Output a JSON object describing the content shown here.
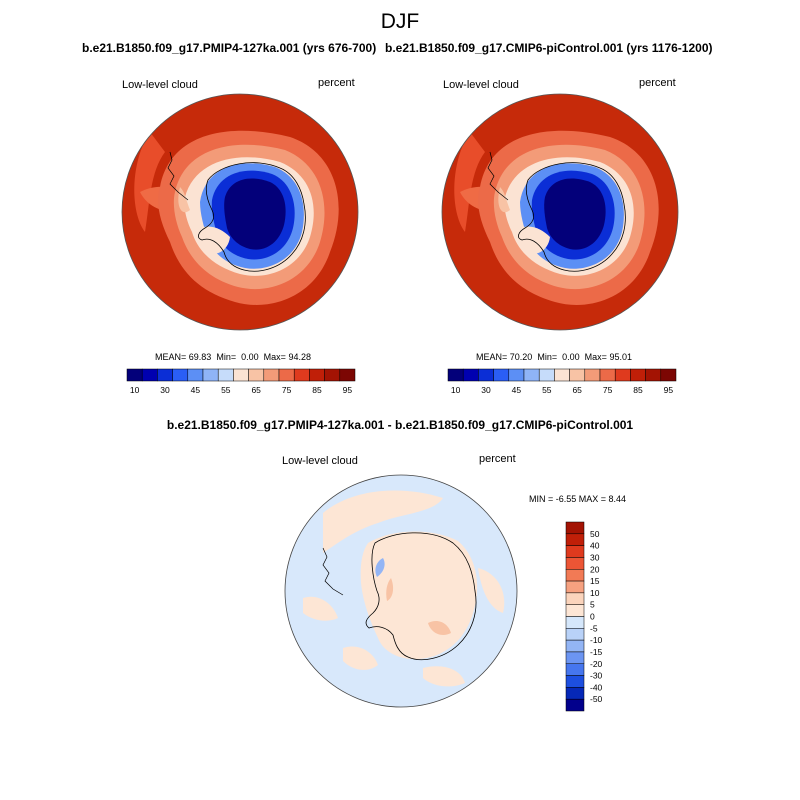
{
  "page": {
    "title": "DJF",
    "diff_title": "b.e21.B1850.f09_g17.PMIP4-127ka.001 - b.e21.B1850.f09_g17.CMIP6-piControl.001"
  },
  "panels": [
    {
      "title": "b.e21.B1850.f09_g17.PMIP4-127ka.001 (yrs 676-700)",
      "variable": "Low-level cloud",
      "units": "percent",
      "stats": {
        "mean_label": "MEAN=",
        "mean": "69.83",
        "min_label": "Min=",
        "min": "0.00",
        "max_label": "Max=",
        "max": "94.28"
      }
    },
    {
      "title": "b.e21.B1850.f09_g17.CMIP6-piControl.001 (yrs 1176-1200)",
      "variable": "Low-level cloud",
      "units": "percent",
      "stats": {
        "mean_label": "MEAN=",
        "mean": "70.20",
        "min_label": "Min=",
        "min": "0.00",
        "max_label": "Max=",
        "max": "95.01"
      }
    },
    {
      "variable": "Low-level cloud",
      "units": "percent",
      "stats_text": "MIN =  -6.55 MAX =   8.44"
    }
  ],
  "colorbar_horizontal": {
    "colors": [
      "#03007a",
      "#0000b0",
      "#0b2ed6",
      "#2a5ef5",
      "#5c8ff5",
      "#8fb4f7",
      "#c6dcfa",
      "#fbe3d3",
      "#f8c3a5",
      "#f39b78",
      "#ec6a48",
      "#df3a1e",
      "#c01f08",
      "#a31303",
      "#7c0603"
    ],
    "tick_labels": [
      "10",
      "30",
      "45",
      "55",
      "65",
      "75",
      "85",
      "95"
    ]
  },
  "colorbar_vertical": {
    "colors": [
      "#a31303",
      "#c01f08",
      "#df3a1e",
      "#ec5535",
      "#f27a55",
      "#f6a180",
      "#fbd4bc",
      "#fde6d5",
      "#d5e7fb",
      "#b9d2f8",
      "#93b5f5",
      "#6c95f2",
      "#4676ee",
      "#1d4fe0",
      "#0628b8",
      "#02008c"
    ],
    "tick_labels": [
      "50",
      "40",
      "30",
      "20",
      "15",
      "10",
      "5",
      "0",
      "-5",
      "-10",
      "-15",
      "-20",
      "-30",
      "-40",
      "-50"
    ]
  },
  "colors": {
    "ocean_high": "#c62a0a",
    "diff_ocean": "#d8e8fb",
    "diff_positive": "#fde6d5",
    "coast": "#000000"
  }
}
